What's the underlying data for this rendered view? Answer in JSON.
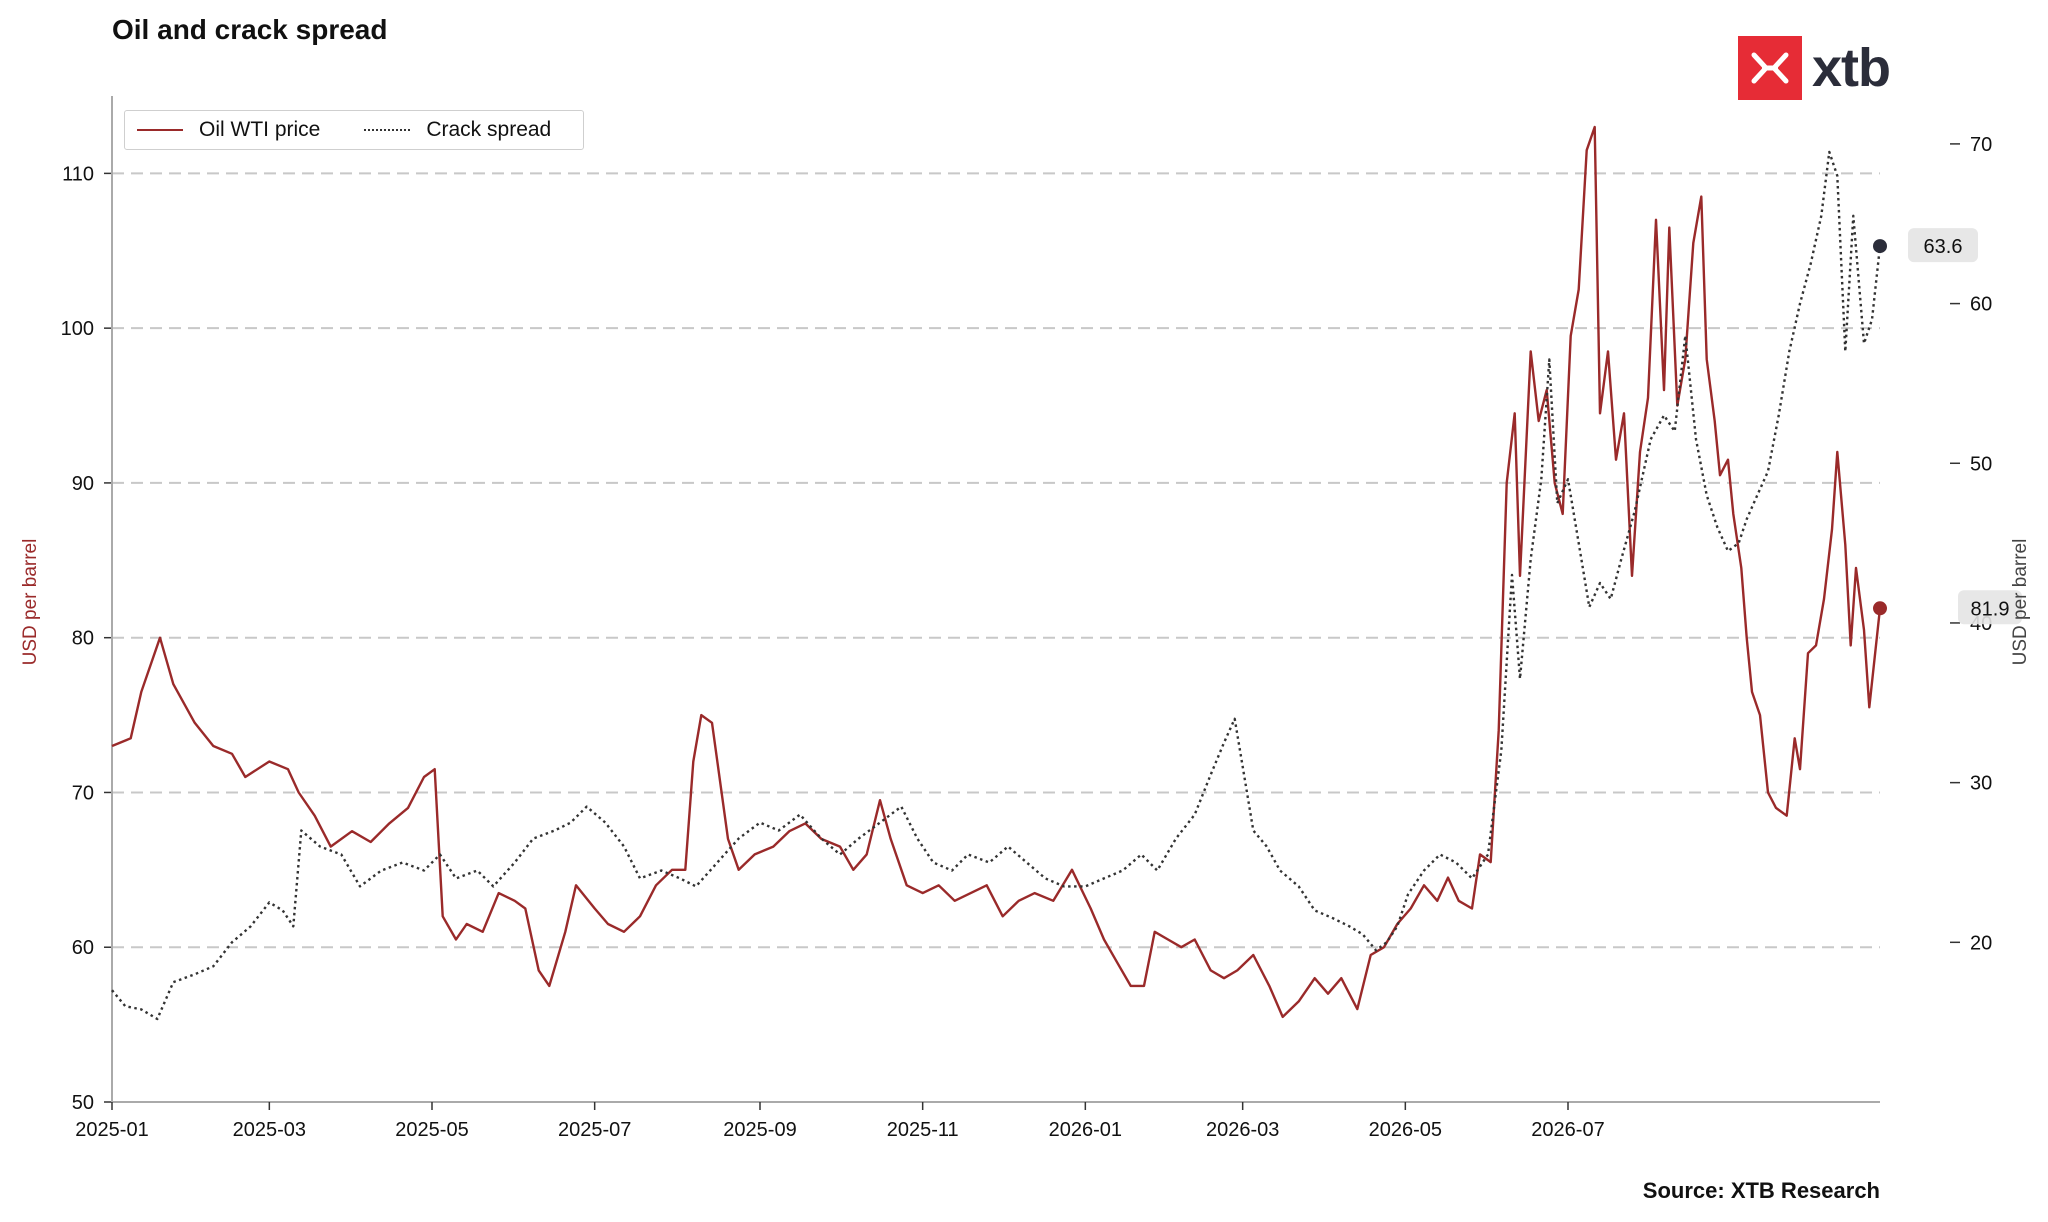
{
  "title": "Oil and crack spread",
  "source": "Source: XTB Research",
  "logo_text": "xtb",
  "colors": {
    "oil": "#9a2a2a",
    "crack": "#333333",
    "grid": "#c8c8c8",
    "logo": "#e62c36"
  },
  "chart_data": {
    "type": "line",
    "x_ticks": [
      "2025-01",
      "2025-03",
      "2025-05",
      "2025-07",
      "2025-09",
      "2025-11",
      "2026-01",
      "2026-03",
      "2026-05",
      "2026-07"
    ],
    "ylabel_left": "USD per barrel",
    "ylabel_right": "USD per barrel",
    "ylim_left": [
      50,
      115
    ],
    "ylim_right": [
      10,
      73
    ],
    "yticks_left": [
      50,
      60,
      70,
      80,
      90,
      100,
      110
    ],
    "yticks_right": [
      20,
      30,
      40,
      50,
      60,
      70
    ],
    "grid": "horizontal dashed",
    "legend_position": "top-left",
    "series": [
      {
        "name": "Oil WTI price",
        "axis": "left",
        "style": "solid",
        "last_label": "81.9",
        "points": [
          [
            "2025-01-01",
            73.0
          ],
          [
            "2025-01-08",
            73.5
          ],
          [
            "2025-01-12",
            76.5
          ],
          [
            "2025-01-16",
            78.5
          ],
          [
            "2025-01-19",
            80.0
          ],
          [
            "2025-01-24",
            77.0
          ],
          [
            "2025-02-01",
            74.5
          ],
          [
            "2025-02-08",
            73.0
          ],
          [
            "2025-02-15",
            72.5
          ],
          [
            "2025-02-20",
            71.0
          ],
          [
            "2025-03-01",
            72.0
          ],
          [
            "2025-03-08",
            71.5
          ],
          [
            "2025-03-12",
            70.0
          ],
          [
            "2025-03-18",
            68.5
          ],
          [
            "2025-03-24",
            66.5
          ],
          [
            "2025-04-01",
            67.5
          ],
          [
            "2025-04-08",
            66.8
          ],
          [
            "2025-04-15",
            68.0
          ],
          [
            "2025-04-22",
            69.0
          ],
          [
            "2025-04-28",
            71.0
          ],
          [
            "2025-05-02",
            71.5
          ],
          [
            "2025-05-05",
            62.0
          ],
          [
            "2025-05-10",
            60.5
          ],
          [
            "2025-05-14",
            61.5
          ],
          [
            "2025-05-20",
            61.0
          ],
          [
            "2025-05-26",
            63.5
          ],
          [
            "2025-06-01",
            63.0
          ],
          [
            "2025-06-05",
            62.5
          ],
          [
            "2025-06-10",
            58.5
          ],
          [
            "2025-06-14",
            57.5
          ],
          [
            "2025-06-20",
            61.0
          ],
          [
            "2025-06-24",
            64.0
          ],
          [
            "2025-07-01",
            62.5
          ],
          [
            "2025-07-06",
            61.5
          ],
          [
            "2025-07-12",
            61.0
          ],
          [
            "2025-07-18",
            62.0
          ],
          [
            "2025-07-24",
            64.0
          ],
          [
            "2025-07-30",
            65.0
          ],
          [
            "2025-08-04",
            65.0
          ],
          [
            "2025-08-07",
            72.0
          ],
          [
            "2025-08-10",
            75.0
          ],
          [
            "2025-08-14",
            74.5
          ],
          [
            "2025-08-20",
            67.0
          ],
          [
            "2025-08-24",
            65.0
          ],
          [
            "2025-08-30",
            66.0
          ],
          [
            "2025-09-06",
            66.5
          ],
          [
            "2025-09-12",
            67.5
          ],
          [
            "2025-09-18",
            68.0
          ],
          [
            "2025-09-24",
            67.0
          ],
          [
            "2025-10-01",
            66.5
          ],
          [
            "2025-10-06",
            65.0
          ],
          [
            "2025-10-11",
            66.0
          ],
          [
            "2025-10-16",
            69.5
          ],
          [
            "2025-10-20",
            67.0
          ],
          [
            "2025-10-26",
            64.0
          ],
          [
            "2025-11-01",
            63.5
          ],
          [
            "2025-11-07",
            64.0
          ],
          [
            "2025-11-13",
            63.0
          ],
          [
            "2025-11-19",
            63.5
          ],
          [
            "2025-11-25",
            64.0
          ],
          [
            "2025-12-01",
            62.0
          ],
          [
            "2025-12-07",
            63.0
          ],
          [
            "2025-12-13",
            63.5
          ],
          [
            "2025-12-20",
            63.0
          ],
          [
            "2025-12-27",
            65.0
          ],
          [
            "2026-01-03",
            62.5
          ],
          [
            "2026-01-08",
            60.5
          ],
          [
            "2026-01-13",
            59.0
          ],
          [
            "2026-01-18",
            57.5
          ],
          [
            "2026-01-23",
            57.5
          ],
          [
            "2026-01-27",
            61.0
          ],
          [
            "2026-02-01",
            60.5
          ],
          [
            "2026-02-06",
            60.0
          ],
          [
            "2026-02-11",
            60.5
          ],
          [
            "2026-02-17",
            58.5
          ],
          [
            "2026-02-22",
            58.0
          ],
          [
            "2026-02-27",
            58.5
          ],
          [
            "2026-03-05",
            59.5
          ],
          [
            "2026-03-11",
            57.5
          ],
          [
            "2026-03-16",
            55.5
          ],
          [
            "2026-03-22",
            56.5
          ],
          [
            "2026-03-28",
            58.0
          ],
          [
            "2026-04-02",
            57.0
          ],
          [
            "2026-04-07",
            58.0
          ],
          [
            "2026-04-13",
            56.0
          ],
          [
            "2026-04-18",
            59.5
          ],
          [
            "2026-04-23",
            60.0
          ],
          [
            "2026-04-28",
            61.5
          ],
          [
            "2026-05-03",
            62.5
          ],
          [
            "2026-05-08",
            64.0
          ],
          [
            "2026-05-13",
            63.0
          ],
          [
            "2026-05-17",
            64.5
          ],
          [
            "2026-05-21",
            63.0
          ],
          [
            "2026-05-26",
            62.5
          ],
          [
            "2026-05-29",
            66.0
          ],
          [
            "2026-06-02",
            65.5
          ],
          [
            "2026-06-05",
            74.0
          ],
          [
            "2026-06-08",
            90.0
          ],
          [
            "2026-06-11",
            94.5
          ],
          [
            "2026-06-13",
            84.0
          ],
          [
            "2026-06-17",
            98.5
          ],
          [
            "2026-06-20",
            94.0
          ],
          [
            "2026-06-23",
            96.0
          ],
          [
            "2026-06-26",
            90.0
          ],
          [
            "2026-06-29",
            88.0
          ],
          [
            "2026-07-02",
            99.5
          ],
          [
            "2026-07-05",
            102.5
          ],
          [
            "2026-07-08",
            111.5
          ],
          [
            "2026-07-11",
            113.0
          ],
          [
            "2026-07-13",
            94.5
          ],
          [
            "2026-07-16",
            98.5
          ],
          [
            "2026-07-19",
            91.5
          ],
          [
            "2026-07-22",
            94.5
          ],
          [
            "2026-07-25",
            84.0
          ],
          [
            "2026-07-28",
            92.0
          ],
          [
            "2026-07-31",
            95.5
          ],
          [
            "2026-08-03",
            107.0
          ],
          [
            "2026-08-06",
            96.0
          ],
          [
            "2026-08-08",
            106.5
          ],
          [
            "2026-08-11",
            95.0
          ],
          [
            "2026-08-14",
            98.0
          ],
          [
            "2026-08-17",
            105.5
          ],
          [
            "2026-08-20",
            108.5
          ],
          [
            "2026-08-22",
            98.0
          ],
          [
            "2026-08-25",
            94.0
          ],
          [
            "2026-08-27",
            90.5
          ],
          [
            "2026-08-30",
            91.5
          ],
          [
            "2026-09-01",
            88.0
          ],
          [
            "2026-09-04",
            84.5
          ],
          [
            "2026-09-06",
            80.0
          ],
          [
            "2026-09-08",
            76.5
          ],
          [
            "2026-09-11",
            75.0
          ],
          [
            "2026-09-14",
            70.0
          ],
          [
            "2026-09-17",
            69.0
          ],
          [
            "2026-09-21",
            68.5
          ],
          [
            "2026-09-24",
            73.5
          ],
          [
            "2026-09-26",
            71.5
          ],
          [
            "2026-09-29",
            79.0
          ],
          [
            "2026-10-02",
            79.5
          ],
          [
            "2026-10-05",
            82.5
          ],
          [
            "2026-10-08",
            87.0
          ],
          [
            "2026-10-10",
            92.0
          ],
          [
            "2026-10-13",
            86.0
          ],
          [
            "2026-10-15",
            79.5
          ],
          [
            "2026-10-17",
            84.5
          ],
          [
            "2026-10-20",
            80.5
          ],
          [
            "2026-10-22",
            75.5
          ],
          [
            "2026-10-26",
            81.9
          ]
        ]
      },
      {
        "name": "Crack spread",
        "axis": "right",
        "style": "dotted",
        "last_label": "63.6",
        "points": [
          [
            "2025-01-01",
            17.0
          ],
          [
            "2025-01-06",
            16.0
          ],
          [
            "2025-01-12",
            15.8
          ],
          [
            "2025-01-18",
            15.2
          ],
          [
            "2025-01-24",
            17.5
          ],
          [
            "2025-02-01",
            18.0
          ],
          [
            "2025-02-08",
            18.5
          ],
          [
            "2025-02-15",
            20.0
          ],
          [
            "2025-02-22",
            21.0
          ],
          [
            "2025-03-01",
            22.5
          ],
          [
            "2025-03-06",
            22.0
          ],
          [
            "2025-03-10",
            21.0
          ],
          [
            "2025-03-13",
            27.0
          ],
          [
            "2025-03-20",
            26.0
          ],
          [
            "2025-03-28",
            25.5
          ],
          [
            "2025-04-04",
            23.5
          ],
          [
            "2025-04-12",
            24.5
          ],
          [
            "2025-04-20",
            25.0
          ],
          [
            "2025-04-28",
            24.5
          ],
          [
            "2025-05-04",
            25.5
          ],
          [
            "2025-05-10",
            24.0
          ],
          [
            "2025-05-18",
            24.5
          ],
          [
            "2025-05-24",
            23.5
          ],
          [
            "2025-06-01",
            25.0
          ],
          [
            "2025-06-08",
            26.5
          ],
          [
            "2025-06-16",
            27.0
          ],
          [
            "2025-06-22",
            27.5
          ],
          [
            "2025-06-28",
            28.5
          ],
          [
            "2025-07-05",
            27.5
          ],
          [
            "2025-07-12",
            26.0
          ],
          [
            "2025-07-18",
            24.0
          ],
          [
            "2025-07-26",
            24.5
          ],
          [
            "2025-08-02",
            24.0
          ],
          [
            "2025-08-08",
            23.5
          ],
          [
            "2025-08-16",
            25.0
          ],
          [
            "2025-08-24",
            26.5
          ],
          [
            "2025-09-01",
            27.5
          ],
          [
            "2025-09-08",
            27.0
          ],
          [
            "2025-09-16",
            28.0
          ],
          [
            "2025-09-24",
            26.5
          ],
          [
            "2025-10-01",
            25.5
          ],
          [
            "2025-10-08",
            26.5
          ],
          [
            "2025-10-16",
            27.5
          ],
          [
            "2025-10-24",
            28.5
          ],
          [
            "2025-10-30",
            26.5
          ],
          [
            "2025-11-05",
            25.0
          ],
          [
            "2025-11-12",
            24.5
          ],
          [
            "2025-11-18",
            25.5
          ],
          [
            "2025-11-26",
            25.0
          ],
          [
            "2025-12-03",
            26.0
          ],
          [
            "2025-12-10",
            25.0
          ],
          [
            "2025-12-17",
            24.0
          ],
          [
            "2025-12-24",
            23.5
          ],
          [
            "2026-01-01",
            23.5
          ],
          [
            "2026-01-08",
            24.0
          ],
          [
            "2026-01-15",
            24.5
          ],
          [
            "2026-01-22",
            25.5
          ],
          [
            "2026-01-28",
            24.5
          ],
          [
            "2026-02-04",
            26.5
          ],
          [
            "2026-02-11",
            28.0
          ],
          [
            "2026-02-17",
            30.5
          ],
          [
            "2026-02-22",
            32.5
          ],
          [
            "2026-02-26",
            34.0
          ],
          [
            "2026-03-01",
            31.0
          ],
          [
            "2026-03-05",
            27.0
          ],
          [
            "2026-03-10",
            26.0
          ],
          [
            "2026-03-15",
            24.5
          ],
          [
            "2026-03-22",
            23.5
          ],
          [
            "2026-03-28",
            22.0
          ],
          [
            "2026-04-04",
            21.5
          ],
          [
            "2026-04-10",
            21.0
          ],
          [
            "2026-04-15",
            20.5
          ],
          [
            "2026-04-20",
            19.5
          ],
          [
            "2026-04-24",
            20.0
          ],
          [
            "2026-04-28",
            21.0
          ],
          [
            "2026-05-02",
            23.0
          ],
          [
            "2026-05-08",
            24.5
          ],
          [
            "2026-05-14",
            25.5
          ],
          [
            "2026-05-20",
            25.0
          ],
          [
            "2026-05-26",
            24.0
          ],
          [
            "2026-06-01",
            25.5
          ],
          [
            "2026-06-06",
            32.0
          ],
          [
            "2026-06-10",
            43.0
          ],
          [
            "2026-06-13",
            36.5
          ],
          [
            "2026-06-17",
            44.0
          ],
          [
            "2026-06-21",
            49.0
          ],
          [
            "2026-06-24",
            56.5
          ],
          [
            "2026-06-27",
            47.5
          ],
          [
            "2026-07-01",
            49.0
          ],
          [
            "2026-07-05",
            45.0
          ],
          [
            "2026-07-09",
            41.0
          ],
          [
            "2026-07-13",
            42.5
          ],
          [
            "2026-07-17",
            41.5
          ],
          [
            "2026-07-21",
            44.0
          ],
          [
            "2026-07-26",
            47.0
          ],
          [
            "2026-08-01",
            51.5
          ],
          [
            "2026-08-06",
            53.0
          ],
          [
            "2026-08-10",
            52.0
          ],
          [
            "2026-08-14",
            58.0
          ],
          [
            "2026-08-18",
            51.5
          ],
          [
            "2026-08-22",
            48.0
          ],
          [
            "2026-08-26",
            46.0
          ],
          [
            "2026-08-30",
            44.5
          ],
          [
            "2026-09-03",
            45.0
          ],
          [
            "2026-09-06",
            46.5
          ],
          [
            "2026-09-10",
            48.0
          ],
          [
            "2026-09-14",
            49.5
          ],
          [
            "2026-09-18",
            53.0
          ],
          [
            "2026-09-22",
            57.0
          ],
          [
            "2026-09-26",
            60.0
          ],
          [
            "2026-09-30",
            62.5
          ],
          [
            "2026-10-04",
            65.5
          ],
          [
            "2026-10-07",
            69.5
          ],
          [
            "2026-10-10",
            68.0
          ],
          [
            "2026-10-13",
            57.0
          ],
          [
            "2026-10-16",
            65.5
          ],
          [
            "2026-10-20",
            57.5
          ],
          [
            "2026-10-23",
            59.0
          ],
          [
            "2026-10-26",
            63.6
          ]
        ]
      }
    ]
  }
}
